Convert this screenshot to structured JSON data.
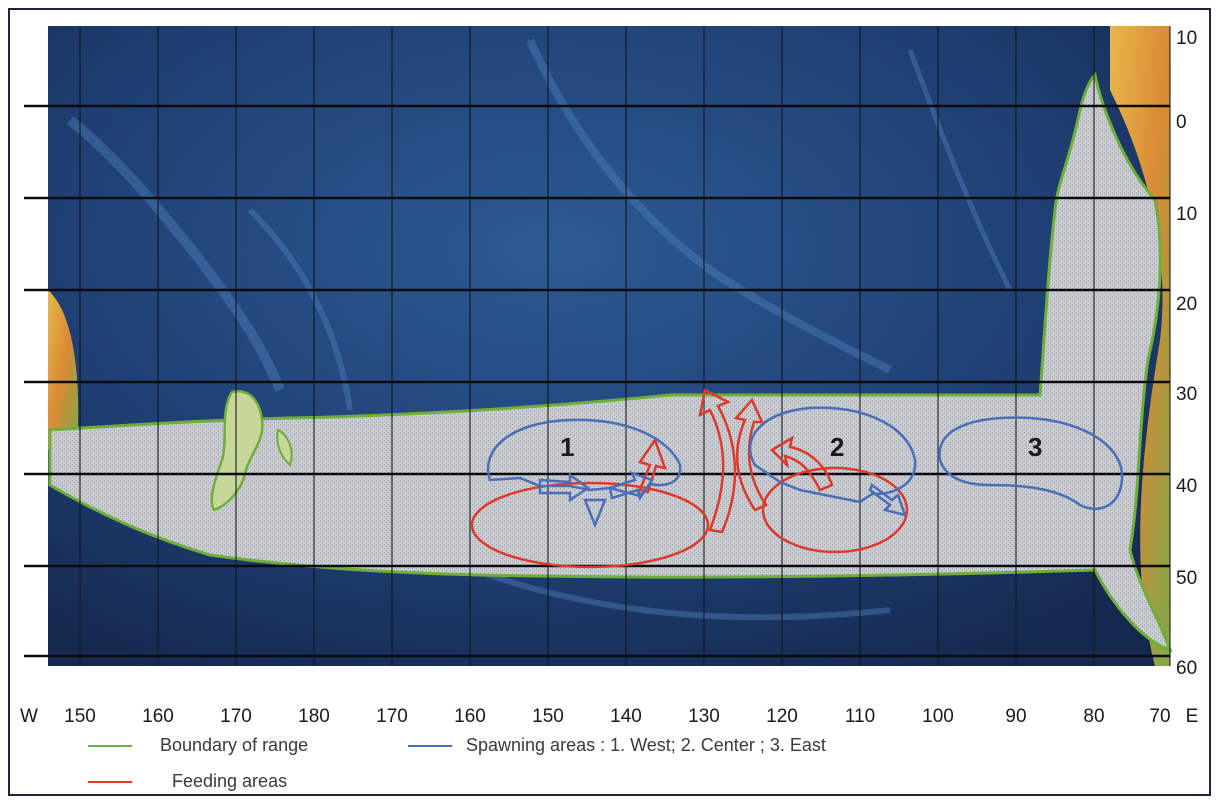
{
  "colors": {
    "boundary": "#6fae3a",
    "spawning": "#4a6fb8",
    "feeding": "#e0382a",
    "ocean": "#1f3f73",
    "range_fill": "#c8ccd0"
  },
  "axes": {
    "longitude_ticks": [
      "150",
      "160",
      "170",
      "180",
      "170",
      "160",
      "150",
      "140",
      "130",
      "120",
      "110",
      "100",
      "90",
      "80",
      "70"
    ],
    "west_label": "W",
    "east_label": "E",
    "latitude_ticks": [
      "10",
      "0",
      "10",
      "20",
      "30",
      "40",
      "50",
      "60"
    ]
  },
  "zones": [
    {
      "label": "1"
    },
    {
      "label": "2"
    },
    {
      "label": "3"
    }
  ],
  "legend": {
    "boundary": "Boundary of range",
    "spawning": "Spawning areas :  1. West;  2. Center ;  3. East",
    "feeding": "Feeding areas"
  }
}
